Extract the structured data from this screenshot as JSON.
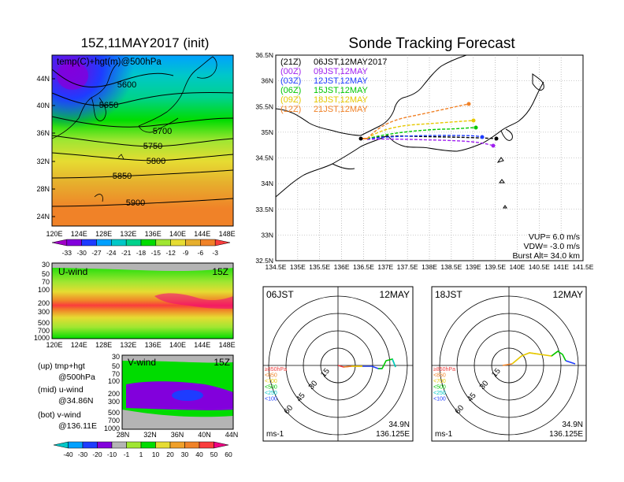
{
  "left": {
    "main_title": "15Z,11MAY2017 (init)",
    "map500": {
      "label": "temp(C)+hgt(m)@500hPa",
      "lat_ticks": [
        "44N",
        "40N",
        "36N",
        "32N",
        "28N",
        "24N"
      ],
      "lon_ticks": [
        "120E",
        "124E",
        "128E",
        "132E",
        "136E",
        "140E",
        "144E",
        "148E"
      ],
      "contour_labels": [
        "5600",
        "5650",
        "5700",
        "5750",
        "5800",
        "5850",
        "5900"
      ]
    },
    "temp_colorbar": [
      "-33",
      "-30",
      "-27",
      "-24",
      "-21",
      "-18",
      "-15",
      "-12",
      "-9",
      "-6",
      "-3"
    ],
    "uwind": {
      "label": "U-wind",
      "time": "15Z",
      "p_ticks": [
        "30",
        "50",
        "70",
        "100",
        "200",
        "300",
        "500",
        "700",
        "1000"
      ],
      "lon_ticks": [
        "120E",
        "124E",
        "128E",
        "132E",
        "136E",
        "140E",
        "144E",
        "148E"
      ]
    },
    "vwind": {
      "label": "V-wind",
      "time": "15Z",
      "p_ticks": [
        "30",
        "50",
        "70",
        "100",
        "200",
        "300",
        "500",
        "700",
        "1000"
      ],
      "lat_ticks": [
        "28N",
        "32N",
        "36N",
        "40N",
        "44N"
      ]
    },
    "legend_notes": [
      {
        "head": "(up) tmp+hgt",
        "sub": "@500hPa"
      },
      {
        "head": "(mid) u-wind",
        "sub": "@34.86N"
      },
      {
        "head": "(bot) v-wind",
        "sub": "@136.11E"
      }
    ],
    "wind_colorbar": [
      "-40",
      "-30",
      "-20",
      "-10",
      "-1",
      "1",
      "10",
      "20",
      "30",
      "40",
      "50",
      "60"
    ]
  },
  "right": {
    "title": "Sonde Tracking Forecast",
    "track_map": {
      "lat_ticks": [
        "36.5N",
        "36N",
        "35.5N",
        "35N",
        "34.5N",
        "34N",
        "33.5N",
        "33N",
        "32.5N"
      ],
      "lon_ticks": [
        "134.5E",
        "135E",
        "135.5E",
        "136E",
        "136.5E",
        "137E",
        "137.5E",
        "138E",
        "138.5E",
        "139E",
        "139.5E",
        "140E",
        "140.5E",
        "141E",
        "141.5E"
      ],
      "tracks": [
        {
          "code": "(21Z)",
          "when": "06JST,12MAY2017",
          "color": "#000000"
        },
        {
          "code": "(00Z)",
          "when": "09JST,12MAY",
          "color": "#a020f0"
        },
        {
          "code": "(03Z)",
          "when": "12JST,12MAY",
          "color": "#1e3cff"
        },
        {
          "code": "(06Z)",
          "when": "15JST,12MAY",
          "color": "#00c800"
        },
        {
          "code": "(09Z)",
          "when": "18JST,12MAY",
          "color": "#e6c800"
        },
        {
          "code": "(12Z)",
          "when": "21JST,12MAY",
          "color": "#f08228"
        }
      ],
      "params": [
        "VUP= 6.0 m/s",
        "VDW= -3.0 m/s",
        "Burst Alt= 34.0 km"
      ]
    },
    "hodographs": [
      {
        "time": "06JST",
        "date": "12MAY",
        "rings": [
          "15",
          "30",
          "45",
          "60"
        ],
        "unit": "ms-1",
        "lat": "34.9N",
        "lon": "136.125E",
        "levels": [
          {
            "label": "≥850hPa",
            "color": "#f03c3c"
          },
          {
            "label": "<850",
            "color": "#f08228"
          },
          {
            "label": "<700",
            "color": "#e6c800"
          },
          {
            "label": "<500",
            "color": "#00c800"
          },
          {
            "label": "<250",
            "color": "#00c8c8"
          },
          {
            "label": "<100",
            "color": "#1e3cff"
          }
        ]
      },
      {
        "time": "18JST",
        "date": "12MAY",
        "rings": [
          "15",
          "30",
          "45",
          "60"
        ],
        "unit": "ms-1",
        "lat": "34.9N",
        "lon": "136.125E",
        "levels": [
          {
            "label": "≥850hPa",
            "color": "#f03c3c"
          },
          {
            "label": "<850",
            "color": "#f08228"
          },
          {
            "label": "<700",
            "color": "#e6c800"
          },
          {
            "label": "<500",
            "color": "#00c800"
          },
          {
            "label": "<250",
            "color": "#00c8c8"
          },
          {
            "label": "<100",
            "color": "#1e3cff"
          }
        ]
      }
    ]
  },
  "colors": {
    "temp_scale": [
      "#a000c8",
      "#8200dc",
      "#1e3cff",
      "#00a0ff",
      "#00c8c8",
      "#00d28c",
      "#00dc00",
      "#a0e632",
      "#e6dc32",
      "#e6af2d",
      "#f08228",
      "#fa3c3c"
    ],
    "wind_scale": [
      "#00c8c8",
      "#00a0ff",
      "#1e3cff",
      "#8200dc",
      "#b4b4b4",
      "#a0e632",
      "#00dc00",
      "#e6dc32",
      "#f0a028",
      "#f08228",
      "#fa3c3c",
      "#f00082"
    ]
  }
}
